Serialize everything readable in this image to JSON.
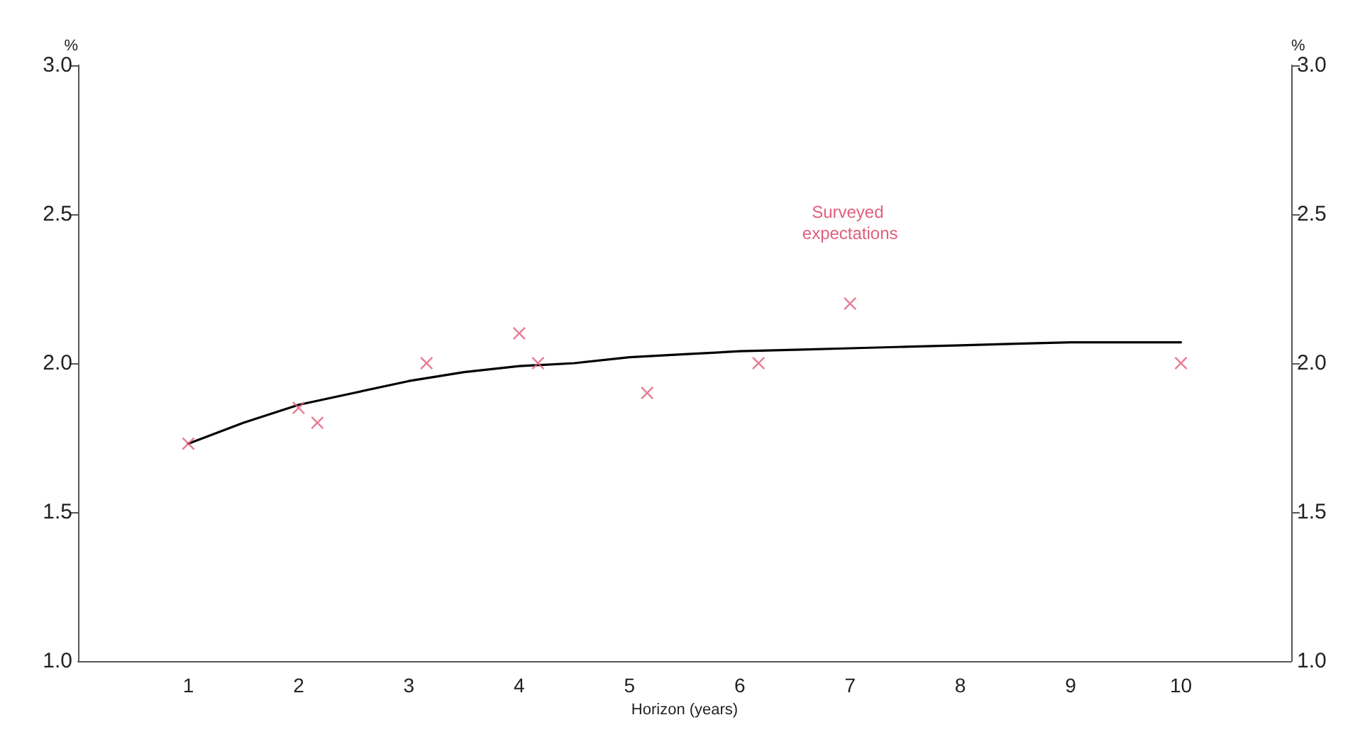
{
  "chart_data": {
    "type": "scatter",
    "xlabel": "Horizon (years)",
    "ylabel": "%",
    "y2label": "%",
    "xlim": [
      0,
      11
    ],
    "xticks": [
      1,
      2,
      3,
      4,
      5,
      6,
      7,
      8,
      9,
      10
    ],
    "ylim": [
      1,
      3
    ],
    "yticks": [
      {
        "value": 1,
        "label": "1.0"
      },
      {
        "value": 1.5,
        "label": "1.5"
      },
      {
        "value": 2,
        "label": "2.0"
      },
      {
        "value": 2.5,
        "label": "2.5"
      },
      {
        "value": 3,
        "label": "3.0"
      }
    ],
    "y2lim": [
      1,
      3
    ],
    "y2ticks": [
      {
        "value": 1,
        "label": "1.0"
      },
      {
        "value": 1.5,
        "label": "1.5"
      },
      {
        "value": 2,
        "label": "2.0"
      },
      {
        "value": 2.5,
        "label": "2.5"
      },
      {
        "value": 3,
        "label": "3.0"
      }
    ],
    "grid": false,
    "legend": false,
    "series": [
      {
        "type": "line",
        "color": "#000000",
        "marker": "none",
        "line_style": "solid",
        "x": [
          1,
          1.5,
          2,
          2.5,
          3,
          3.5,
          4,
          4.5,
          5,
          5.5,
          6,
          6.5,
          7,
          7.5,
          8,
          8.5,
          9,
          9.5,
          10
        ],
        "values": [
          1.73,
          1.8,
          1.86,
          1.9,
          1.94,
          1.97,
          1.99,
          2.0,
          2.02,
          2.03,
          2.04,
          2.045,
          2.05,
          2.055,
          2.06,
          2.065,
          2.07,
          2.07,
          2.07
        ]
      },
      {
        "name": "Surveyed expectations",
        "color": "#e0607e",
        "marker": "cross",
        "x": [
          1,
          2,
          2.17,
          3.16,
          4,
          4.17,
          5.16,
          6.17,
          7,
          10
        ],
        "values": [
          1.73,
          1.85,
          1.8,
          2.0,
          2.1,
          2.0,
          1.9,
          2.0,
          2.2,
          2.0
        ]
      }
    ]
  }
}
